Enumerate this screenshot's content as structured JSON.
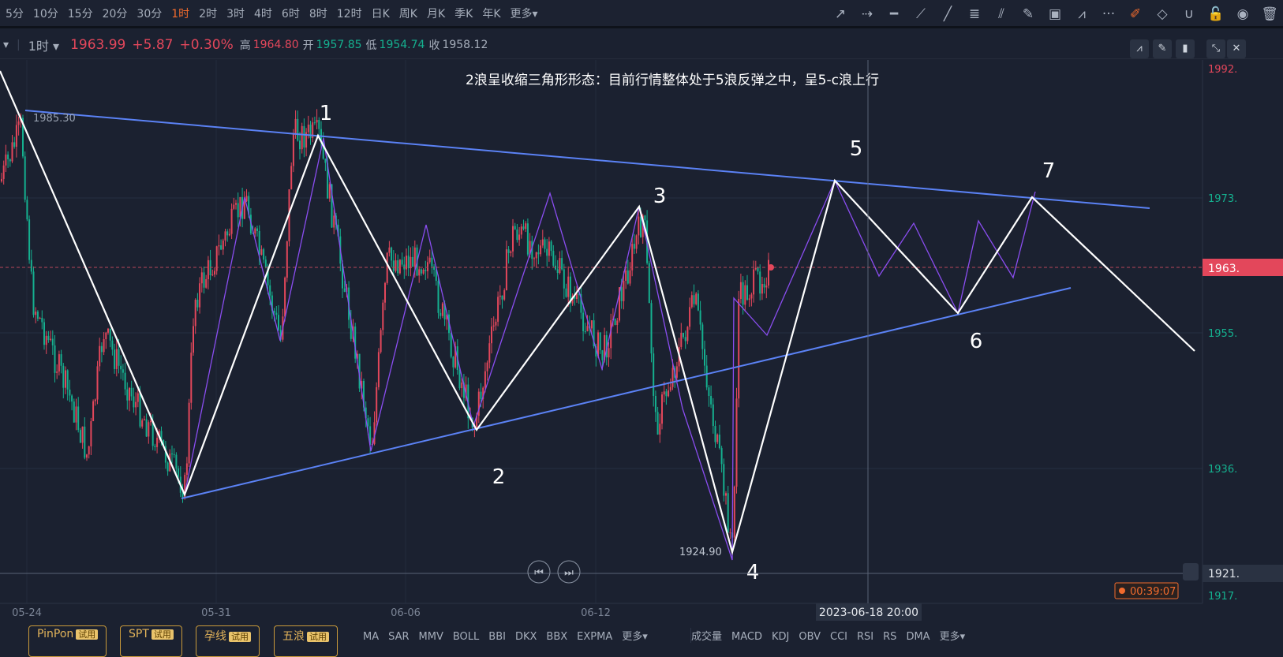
{
  "periods": [
    "5分",
    "10分",
    "15分",
    "20分",
    "30分",
    "1时",
    "2时",
    "3时",
    "4时",
    "6时",
    "8时",
    "12时",
    "日K",
    "周K",
    "月K",
    "季K",
    "年K",
    "更多▾"
  ],
  "active_period": "1时",
  "tools": [
    {
      "name": "arrow-line-icon",
      "glyph": "↗"
    },
    {
      "name": "dashed-arrow-icon",
      "glyph": "⇢"
    },
    {
      "name": "horizontal-line-icon",
      "glyph": "━"
    },
    {
      "name": "segment-icon",
      "glyph": "⟋"
    },
    {
      "name": "ray-icon",
      "glyph": "╱"
    },
    {
      "name": "fibonacci-icon",
      "glyph": "≣"
    },
    {
      "name": "fan-icon",
      "glyph": "⫽"
    },
    {
      "name": "highlighter-icon",
      "glyph": "✎"
    },
    {
      "name": "image-icon",
      "glyph": "▣"
    },
    {
      "name": "wave-icon",
      "glyph": "⩘"
    },
    {
      "name": "more-icon",
      "glyph": "···"
    },
    {
      "name": "edit-icon",
      "glyph": "✐",
      "active": true
    },
    {
      "name": "eraser-icon",
      "glyph": "◇"
    },
    {
      "name": "magnet-icon",
      "glyph": "∪"
    },
    {
      "name": "unlock-icon",
      "glyph": "🔓"
    },
    {
      "name": "eye-icon",
      "glyph": "◉"
    },
    {
      "name": "trash-icon",
      "glyph": "🗑"
    }
  ],
  "info": {
    "period": "1时",
    "price": "1963.99",
    "change": "+5.87",
    "change_pct": "+0.30%",
    "high_label": "高",
    "high": "1964.80",
    "open_label": "开",
    "open": "1957.85",
    "low_label": "低",
    "low": "1954.74",
    "close_label": "收",
    "close": "1958.12"
  },
  "annotation": "2浪呈收缩三角形形态：目前行情整体处于5浪反弹之中，呈5-c浪上行",
  "wave_labels": [
    "1",
    "2",
    "3",
    "4",
    "5",
    "6",
    "7"
  ],
  "price_marks": {
    "high": "1985.30",
    "low": "1924.90"
  },
  "y_ticks": [
    "1992.",
    "1973.",
    "1955.",
    "1936.",
    "1917."
  ],
  "current_price_tag": "1963.",
  "crosshair_price": "1921.",
  "crosshair_time": "2023-06-18 20:00",
  "countdown": "00:39:07",
  "x_ticks": [
    "05-24",
    "05-31",
    "06-06",
    "06-12"
  ],
  "colors": {
    "up": "#e3475b",
    "down": "#15b08f",
    "trend": "#5b82f5",
    "wave": "#ffffff",
    "subwave": "#8a4df0",
    "accent": "#f26b2d"
  },
  "bottom": {
    "tags": [
      "PinPon",
      "SPT",
      "孕线",
      "五浪"
    ],
    "try_label": "试用",
    "main_ind": [
      "MA",
      "SAR",
      "MMV",
      "BOLL",
      "BBI",
      "DKX",
      "BBX",
      "EXPMA",
      "更多▾"
    ],
    "sub_ind": [
      "成交量",
      "MACD",
      "KDJ",
      "OBV",
      "CCI",
      "RSI",
      "RS",
      "DMA",
      "更多▾"
    ]
  }
}
